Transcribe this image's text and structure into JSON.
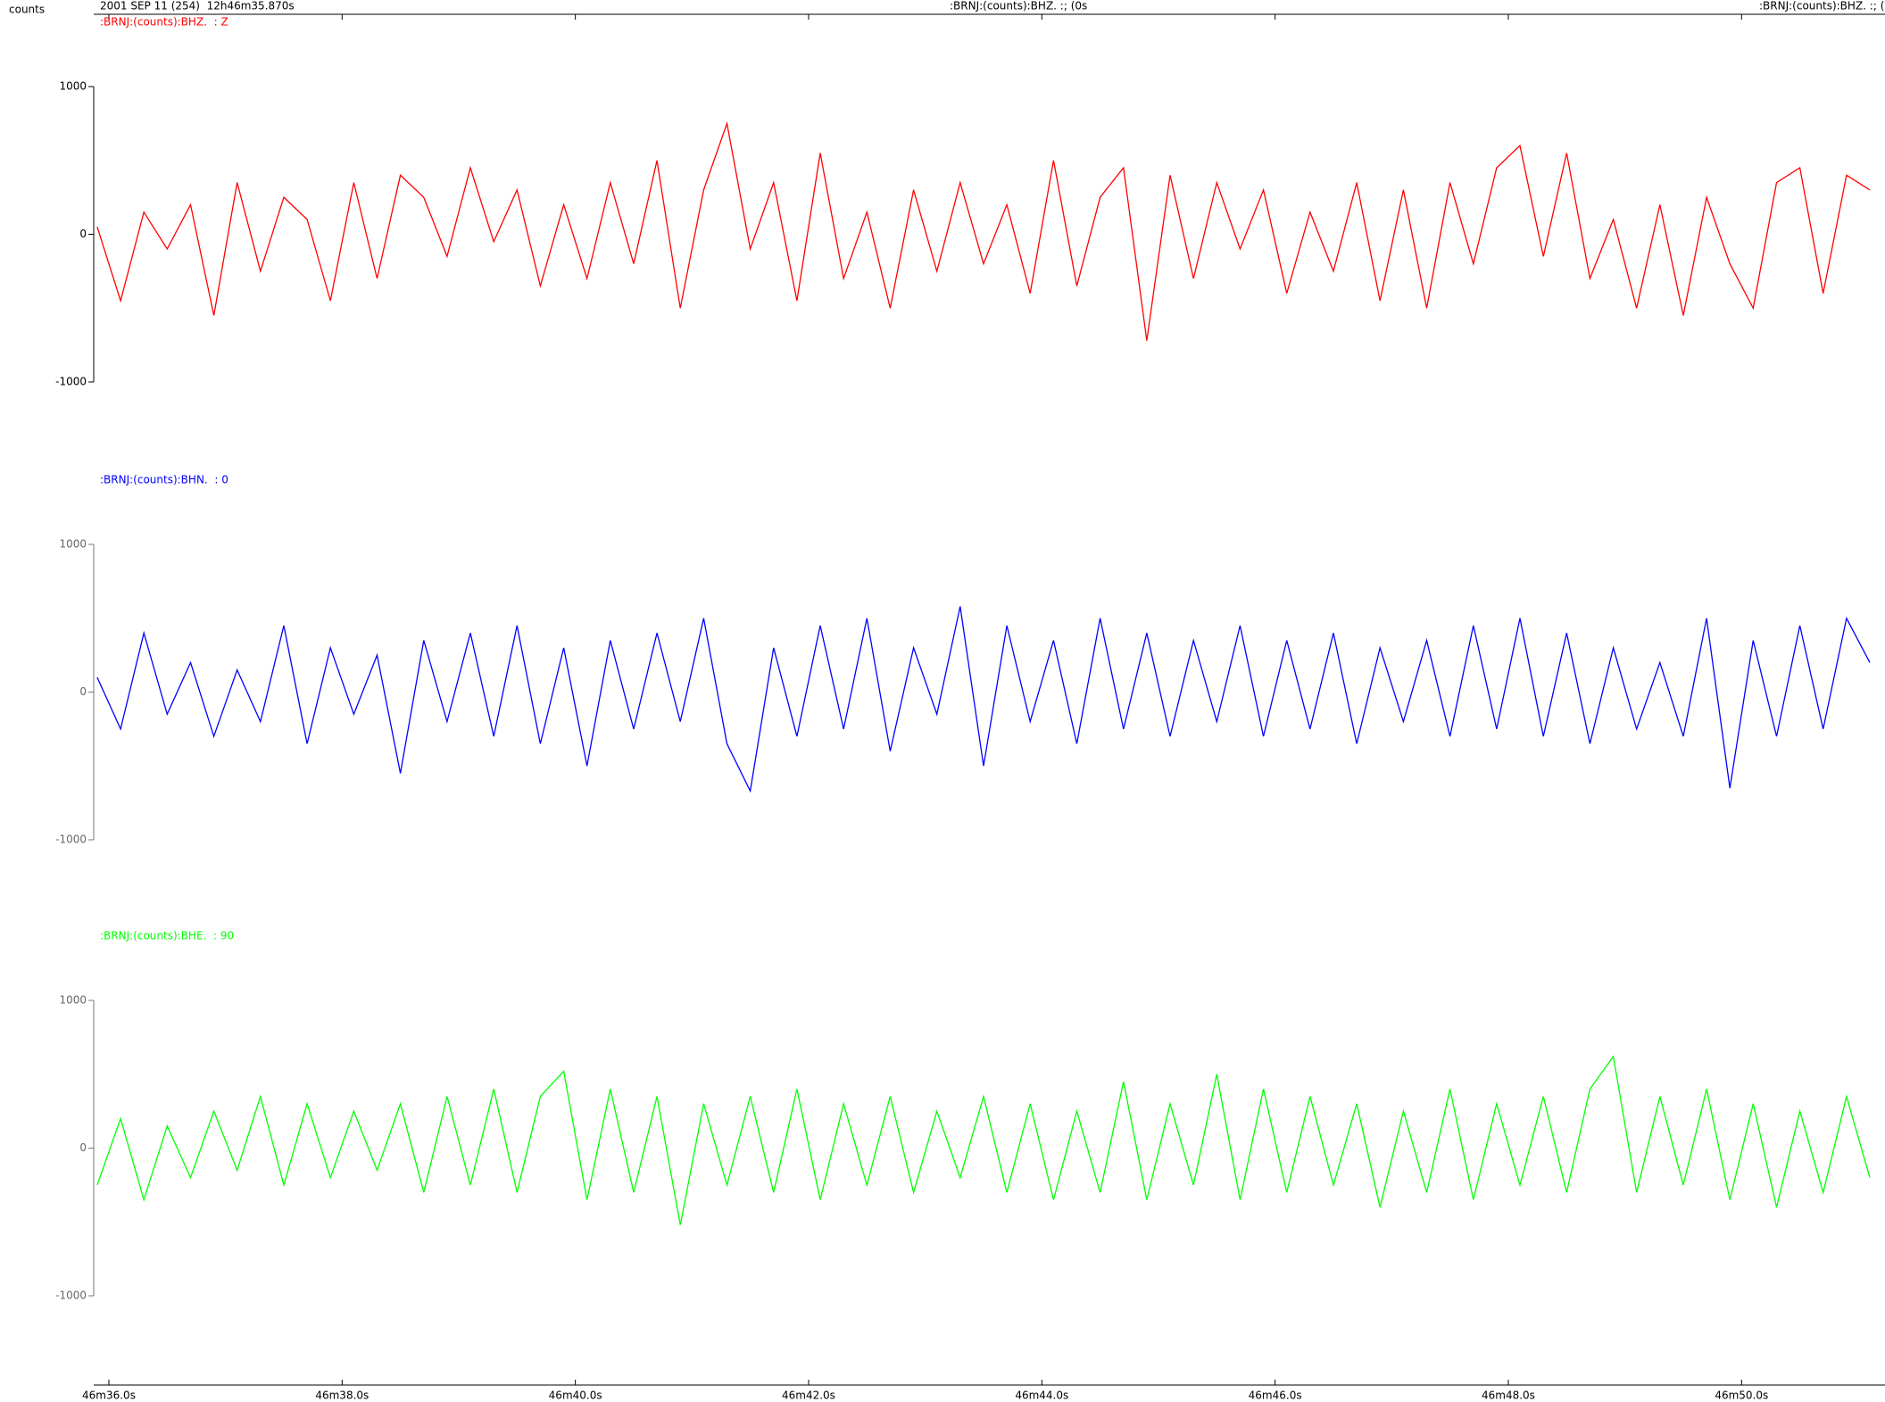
{
  "chart_data": {
    "type": "line",
    "y_label": "counts",
    "title": "2001 SEP 11 (254)  12h46m35.870s",
    "header_center": ":BRNJ:(counts):BHZ. :; (0s",
    "header_right": ":BRNJ:(counts):BHZ. :; (0",
    "xlim": [
      35.87,
      51.23
    ],
    "xticks": [
      {
        "value": 36,
        "label": "46m36.0s"
      },
      {
        "value": 38,
        "label": "46m38.0s"
      },
      {
        "value": 40,
        "label": "46m40.0s"
      },
      {
        "value": 42,
        "label": "46m42.0s"
      },
      {
        "value": 44,
        "label": "46m44.0s"
      },
      {
        "value": 46,
        "label": "46m46.0s"
      },
      {
        "value": 48,
        "label": "46m48.0s"
      },
      {
        "value": 50,
        "label": "46m50.0s"
      }
    ],
    "x": [
      35.9,
      36.1,
      36.3,
      36.5,
      36.7,
      36.9,
      37.1,
      37.3,
      37.5,
      37.7,
      37.9,
      38.1,
      38.3,
      38.5,
      38.7,
      38.9,
      39.1,
      39.3,
      39.5,
      39.7,
      39.9,
      40.1,
      40.3,
      40.5,
      40.7,
      40.9,
      41.1,
      41.3,
      41.5,
      41.7,
      41.9,
      42.1,
      42.3,
      42.5,
      42.7,
      42.9,
      43.1,
      43.3,
      43.5,
      43.7,
      43.9,
      44.1,
      44.3,
      44.5,
      44.7,
      44.9,
      45.1,
      45.3,
      45.5,
      45.7,
      45.9,
      46.1,
      46.3,
      46.5,
      46.7,
      46.9,
      47.1,
      47.3,
      47.5,
      47.7,
      47.9,
      48.1,
      48.3,
      48.5,
      48.7,
      48.9,
      49.1,
      49.3,
      49.5,
      49.7,
      49.9,
      50.1,
      50.3,
      50.5,
      50.7,
      50.9,
      51.1
    ],
    "panels": [
      {
        "name": ":BRNJ:(counts):BHZ.  : Z",
        "color": "#ff0000",
        "ylim": [
          -1000,
          1000
        ],
        "yticks": [
          -1000,
          0,
          1000
        ],
        "values": [
          50,
          -450,
          150,
          -100,
          200,
          -550,
          350,
          -250,
          250,
          100,
          -450,
          350,
          -300,
          400,
          250,
          -150,
          450,
          -50,
          300,
          -350,
          200,
          -300,
          350,
          -200,
          500,
          -500,
          300,
          750,
          -100,
          350,
          -450,
          550,
          -300,
          150,
          -500,
          300,
          -250,
          350,
          -200,
          200,
          -400,
          500,
          -350,
          250,
          450,
          -720,
          400,
          -300,
          350,
          -100,
          300,
          -400,
          150,
          -250,
          350,
          -450,
          300,
          -500,
          350,
          -200,
          450,
          600,
          -150,
          550,
          -300,
          100,
          -500,
          200,
          -550,
          250,
          -200,
          -500,
          350,
          450,
          -400,
          400,
          300
        ]
      },
      {
        "name": ":BRNJ:(counts):BHN.  : 0",
        "color": "#0000ff",
        "ylim": [
          -1000,
          1000
        ],
        "yticks": [
          -1000,
          0,
          1000
        ],
        "values": [
          100,
          -250,
          400,
          -150,
          200,
          -300,
          150,
          -200,
          450,
          -350,
          300,
          -150,
          250,
          -550,
          350,
          -200,
          400,
          -300,
          450,
          -350,
          300,
          -500,
          350,
          -250,
          400,
          -200,
          500,
          -350,
          -670,
          300,
          -300,
          450,
          -250,
          500,
          -400,
          300,
          -150,
          580,
          -500,
          450,
          -200,
          350,
          -350,
          500,
          -250,
          400,
          -300,
          350,
          -200,
          450,
          -300,
          350,
          -250,
          400,
          -350,
          300,
          -200,
          350,
          -300,
          450,
          -250,
          500,
          -300,
          400,
          -350,
          300,
          -250,
          200,
          -300,
          500,
          -650,
          350,
          -300,
          450,
          -250,
          500,
          200
        ]
      },
      {
        "name": ":BRNJ:(counts):BHE.  : 90",
        "color": "#00ff00",
        "ylim": [
          -1000,
          1000
        ],
        "yticks": [
          -1000,
          0,
          1000
        ],
        "values": [
          -250,
          200,
          -350,
          150,
          -200,
          250,
          -150,
          350,
          -250,
          300,
          -200,
          250,
          -150,
          300,
          -300,
          350,
          -250,
          400,
          -300,
          350,
          520,
          -350,
          400,
          -300,
          350,
          -520,
          300,
          -250,
          350,
          -300,
          400,
          -350,
          300,
          -250,
          350,
          -300,
          250,
          -200,
          350,
          -300,
          300,
          -350,
          250,
          -300,
          450,
          -350,
          300,
          -250,
          500,
          -350,
          400,
          -300,
          350,
          -250,
          300,
          -400,
          250,
          -300,
          400,
          -350,
          300,
          -250,
          350,
          -300,
          400,
          620,
          -300,
          350,
          -250,
          400,
          -350,
          300,
          -400,
          250,
          -300,
          350,
          -200
        ]
      }
    ]
  }
}
